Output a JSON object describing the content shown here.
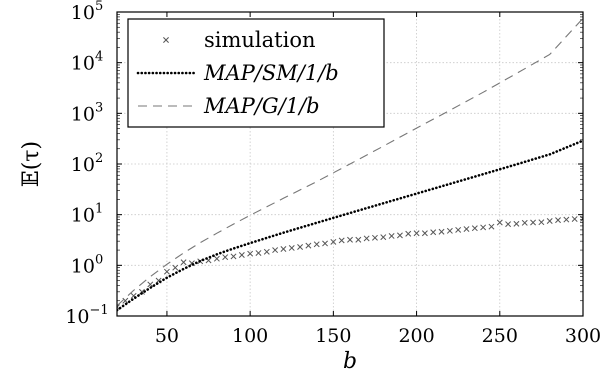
{
  "chart_data": {
    "type": "line",
    "title": "",
    "xlabel": "b",
    "ylabel": "𝔼(τ)",
    "xlim": [
      20,
      300
    ],
    "ylim": [
      0.1,
      100000
    ],
    "yscale": "log",
    "grid": true,
    "legend_position": "top-left",
    "x_ticks": [
      {
        "value": 50,
        "label": "50"
      },
      {
        "value": 100,
        "label": "100"
      },
      {
        "value": 150,
        "label": "150"
      },
      {
        "value": 200,
        "label": "200"
      },
      {
        "value": 250,
        "label": "250"
      },
      {
        "value": 300,
        "label": "300"
      }
    ],
    "y_ticks": [
      {
        "value": 0.1,
        "base": "10",
        "exp": "−1"
      },
      {
        "value": 1,
        "base": "10",
        "exp": "0"
      },
      {
        "value": 10,
        "base": "10",
        "exp": "1"
      },
      {
        "value": 100,
        "base": "10",
        "exp": "2"
      },
      {
        "value": 1000,
        "base": "10",
        "exp": "3"
      },
      {
        "value": 10000,
        "base": "10",
        "exp": "4"
      },
      {
        "value": 100000,
        "base": "10",
        "exp": "5"
      }
    ],
    "series": [
      {
        "name": "simulation",
        "style": "markers-x",
        "color": "#555555",
        "x": [
          20,
          25,
          30,
          35,
          40,
          45,
          50,
          55,
          60,
          65,
          70,
          75,
          80,
          85,
          90,
          95,
          100,
          105,
          110,
          115,
          120,
          125,
          130,
          135,
          140,
          145,
          150,
          155,
          160,
          165,
          170,
          175,
          180,
          185,
          190,
          195,
          200,
          205,
          210,
          215,
          220,
          225,
          230,
          235,
          240,
          245,
          250,
          255,
          260,
          265,
          270,
          275,
          280,
          285,
          290,
          295,
          300
        ],
        "y": [
          0.15,
          0.2,
          0.25,
          0.3,
          0.42,
          0.5,
          0.75,
          0.9,
          1.15,
          1.1,
          1.2,
          1.25,
          1.35,
          1.45,
          1.5,
          1.6,
          1.7,
          1.75,
          1.85,
          2.0,
          2.1,
          2.2,
          2.3,
          2.45,
          2.6,
          2.7,
          2.9,
          3.1,
          3.2,
          3.2,
          3.4,
          3.5,
          3.6,
          3.8,
          3.9,
          4.2,
          4.3,
          4.3,
          4.5,
          4.6,
          4.8,
          5.0,
          5.2,
          5.4,
          5.6,
          5.8,
          7.0,
          6.5,
          6.6,
          6.9,
          7.0,
          7.1,
          7.5,
          7.8,
          8.0,
          8.2,
          8.3
        ]
      },
      {
        "name": "MAP/SM/1/b",
        "style": "dotted",
        "color": "#000000",
        "x": [
          20,
          30,
          40,
          50,
          60,
          70,
          80,
          90,
          100,
          120,
          140,
          160,
          180,
          200,
          220,
          240,
          260,
          280,
          300
        ],
        "y": [
          0.13,
          0.22,
          0.36,
          0.57,
          0.85,
          1.22,
          1.65,
          2.15,
          2.75,
          4.4,
          6.9,
          10.8,
          16.8,
          26,
          40.5,
          63,
          98,
          155,
          290
        ]
      },
      {
        "name": "MAP/G/1/b",
        "style": "dashed",
        "color": "#777777",
        "x": [
          20,
          30,
          40,
          50,
          60,
          70,
          80,
          90,
          100,
          120,
          140,
          160,
          180,
          200,
          220,
          240,
          260,
          280,
          300
        ],
        "y": [
          0.16,
          0.32,
          0.6,
          1.05,
          1.75,
          2.8,
          4.3,
          6.5,
          9.7,
          21,
          45,
          100,
          225,
          510,
          1150,
          2600,
          6100,
          14500,
          75000
        ]
      }
    ]
  }
}
